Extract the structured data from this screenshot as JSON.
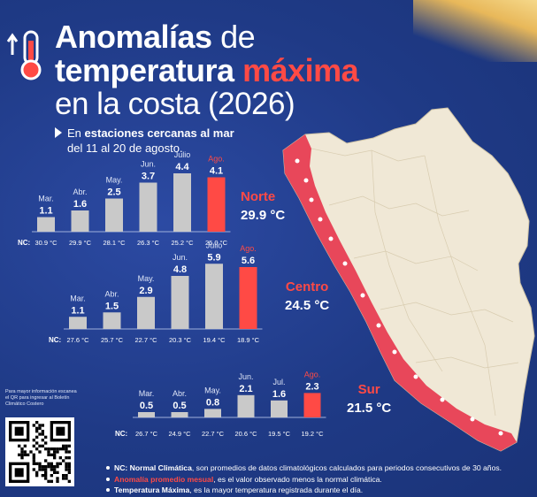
{
  "title": {
    "line1_bold": "Anomalías",
    "line1_light": "de",
    "line2_white": "temperatura",
    "line2_red": "máxima",
    "line3": "en la costa (2026)"
  },
  "subtitle": {
    "prefix": "En",
    "bold": "estaciones cercanas al mar",
    "line2": "del 11 al 20 de agosto."
  },
  "nc_label": "NC:",
  "chart_data": [
    {
      "type": "bar",
      "region": "Norte",
      "region_temp": "29.9 °C",
      "categories": [
        "Mar.",
        "Abr.",
        "May.",
        "Jun.",
        "Julio",
        "Ago."
      ],
      "values": [
        1.1,
        1.6,
        2.5,
        3.7,
        4.4,
        4.1
      ],
      "nc": [
        "30.9 °C",
        "29.9 °C",
        "28.1 °C",
        "26.3 °C",
        "25.2 °C",
        "25.0 °C"
      ],
      "highlight_index": 5
    },
    {
      "type": "bar",
      "region": "Centro",
      "region_temp": "24.5 °C",
      "categories": [
        "Mar.",
        "Abr.",
        "May.",
        "Jun.",
        "Julio",
        "Ago."
      ],
      "values": [
        1.1,
        1.5,
        2.9,
        4.8,
        5.9,
        5.6
      ],
      "nc": [
        "27.6 °C",
        "25.7 °C",
        "22.7 °C",
        "20.3 °C",
        "19.4 °C",
        "18.9 °C"
      ],
      "highlight_index": 5
    },
    {
      "type": "bar",
      "region": "Sur",
      "region_temp": "21.5 °C",
      "categories": [
        "Mar.",
        "Abr.",
        "May.",
        "Jun.",
        "Jul.",
        "Ago."
      ],
      "values": [
        0.5,
        0.5,
        0.8,
        2.1,
        1.6,
        2.3
      ],
      "nc": [
        "26.7 °C",
        "24.9 °C",
        "22.7 °C",
        "20.6 °C",
        "19.5 °C",
        "19.2 °C"
      ],
      "highlight_index": 5
    }
  ],
  "colors": {
    "background": "#1f3a86",
    "bar": "#c9c9c9",
    "highlight_bar": "#ff4a45",
    "map_land": "#f0e8d6",
    "map_coast": "#e8475a"
  },
  "qr_note": "Para mayor información escanea el QR para ingresar al Boletín Climático Costero",
  "notes": {
    "nc_bold": "NC: Normal Climática",
    "nc_rest": ", son promedios de datos climatológicos calculados para periodos consecutivos de 30 años.",
    "anom_bold": "Anomalía promedio mesual",
    "anom_rest": ", es el valor observado menos la normal climática.",
    "tmax_bold": "Temperatura Máxima",
    "tmax_rest": ", es la mayor temperatura registrada durante el día."
  },
  "icons": [
    "thermometer-up-icon",
    "qr-code-icon",
    "peru-map"
  ]
}
